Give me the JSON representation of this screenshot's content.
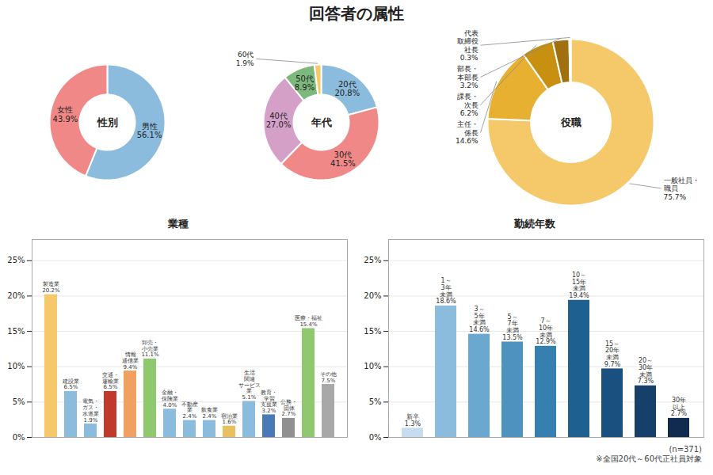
{
  "title": "回答者の属性",
  "annotations": [
    "(n=371)\n※全国20代～60代正社員対象"
  ],
  "chart_data": [
    {
      "type": "donut",
      "title": "性別",
      "categories": [
        "男性",
        "女性"
      ],
      "values": [
        56.1,
        43.9
      ],
      "value_labels": [
        "56.1%",
        "43.9%"
      ],
      "colors": [
        "#8BBCDE",
        "#F08888"
      ],
      "data_labels": true
    },
    {
      "type": "donut",
      "title": "年代",
      "categories": [
        "20代",
        "30代",
        "40代",
        "50代",
        "60代"
      ],
      "values": [
        20.8,
        41.5,
        27.0,
        8.9,
        1.9
      ],
      "value_labels": [
        "20.8%",
        "41.5%",
        "27.0%",
        "8.9%",
        "1.9%"
      ],
      "colors": [
        "#8BBCDE",
        "#F08888",
        "#D4A0C8",
        "#7DB87D",
        "#F5C96A"
      ],
      "data_labels": true
    },
    {
      "type": "donut",
      "title": "役職",
      "categories": [
        "一般社員・\n職員",
        "主任・\n係長",
        "課長・\n次長",
        "部長・\n本部長",
        "代表\n取締役\n社長"
      ],
      "values": [
        75.7,
        14.6,
        6.2,
        3.2,
        0.3
      ],
      "value_labels": [
        "75.7%",
        "14.6%",
        "6.2%",
        "3.2%",
        "0.3%"
      ],
      "colors": [
        "#F5C96A",
        "#E8B030",
        "#C89010",
        "#A07010",
        "#806000"
      ],
      "data_labels": true
    },
    {
      "type": "bar",
      "title": "業種",
      "categories": [
        "製造業",
        "建設業",
        "電気・\nガス・\n水道業",
        "交通・\n運輸業",
        "情報\n通信業",
        "卸売・\n小売業",
        "金融・\n保険業",
        "不動産\n業",
        "飲食業",
        "宿泊業",
        "生活\n関連\nサービス\n業",
        "教育・\n学習\n支援業",
        "公務・\n団体",
        "医療・福祉",
        "その他"
      ],
      "values": [
        20.2,
        6.5,
        1.9,
        6.5,
        9.4,
        11.1,
        4.0,
        2.4,
        2.4,
        1.6,
        5.1,
        3.2,
        2.7,
        15.4,
        7.5
      ],
      "value_labels": [
        "20.2%",
        "6.5%",
        "1.9%",
        "6.5%",
        "9.4%",
        "11.1%",
        "4.0%",
        "2.4%",
        "2.4%",
        "1.6%",
        "5.1%",
        "3.2%",
        "2.7%",
        "15.4%",
        "7.5%"
      ],
      "colors": [
        "#F5C96A",
        "#8BBCDE",
        "#8BBCDE",
        "#C0392B",
        "#F0A060",
        "#90C870",
        "#8BBCDE",
        "#8BBCDE",
        "#8BBCDE",
        "#E8C060",
        "#8BBCDE",
        "#4A7AB5",
        "#909090",
        "#90C870",
        "#A8A8A8"
      ],
      "ylim": [
        0,
        28
      ],
      "yticks": [
        {
          "value": 0,
          "label": "0%"
        },
        {
          "value": 5,
          "label": "5%"
        },
        {
          "value": 10,
          "label": "10%"
        },
        {
          "value": 15,
          "label": "15%"
        },
        {
          "value": 20,
          "label": "20%"
        },
        {
          "value": 25,
          "label": "25%"
        }
      ],
      "grid": true,
      "data_labels": true,
      "tick_labels": "y"
    },
    {
      "type": "bar",
      "title": "勤続年数",
      "categories": [
        "新卒",
        "1～\n3年\n未満",
        "3～\n5年\n未満",
        "5～\n7年\n未満",
        "7～\n10年\n未満",
        "10～\n15年\n未満",
        "15～\n20年\n未満",
        "20～\n30年\n未満",
        "30年\n以上"
      ],
      "values": [
        1.3,
        18.6,
        14.6,
        13.5,
        12.9,
        19.4,
        9.7,
        7.3,
        2.7
      ],
      "value_labels": [
        "1.3%",
        "18.6%",
        "14.6%",
        "13.5%",
        "12.9%",
        "19.4%",
        "9.7%",
        "7.3%",
        "2.7%"
      ],
      "colors": [
        "#C8DCEF",
        "#8BBCDE",
        "#6BA8D0",
        "#4E93C0",
        "#3580B0",
        "#1E6090",
        "#1A5080",
        "#163F6A",
        "#102A50"
      ],
      "ylim": [
        0,
        28
      ],
      "yticks": [
        {
          "value": 0,
          "label": "0%"
        },
        {
          "value": 5,
          "label": "5%"
        },
        {
          "value": 10,
          "label": "10%"
        },
        {
          "value": 15,
          "label": "15%"
        },
        {
          "value": 20,
          "label": "20%"
        },
        {
          "value": 25,
          "label": "25%"
        }
      ],
      "grid": true,
      "data_labels": true,
      "tick_labels": "y"
    }
  ]
}
